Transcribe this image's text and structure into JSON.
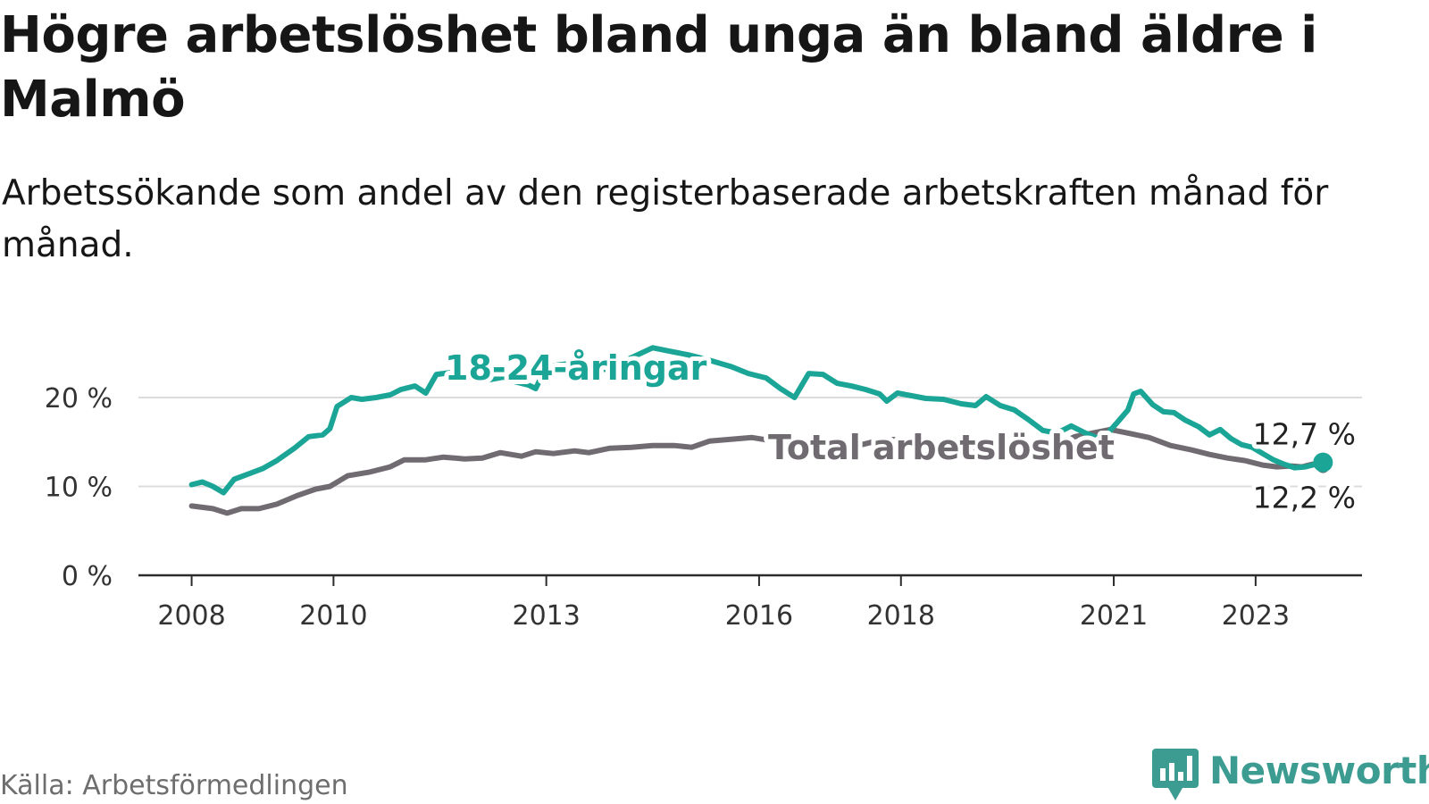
{
  "title": "Högre arbetslöshet bland unga än bland äldre i Malmö",
  "subtitle": "Arbetssökande som andel av den registerbaserade arbetskraften månad för månad.",
  "source": "Källa: Arbetsförmedlingen",
  "brand": {
    "name": "Newsworthy",
    "icon": "newsworthy-logo-icon",
    "color": "#3d9c92"
  },
  "chart_data": {
    "type": "line",
    "title": "Högre arbetslöshet bland unga än bland äldre i Malmö",
    "xlabel": "",
    "ylabel": "",
    "x_ticks": [
      2008,
      2010,
      2013,
      2016,
      2018,
      2021,
      2023
    ],
    "xlim": [
      2007.25,
      2024.5
    ],
    "y_ticks": [
      0,
      10,
      20
    ],
    "y_tick_labels": [
      "0 %",
      "10 %",
      "20 %"
    ],
    "ylim": [
      0,
      20
    ],
    "grid": true,
    "series": [
      {
        "name": "Total arbetslöshet",
        "label": "Total arbetslöshet",
        "color": "#6f6b70",
        "end_label": "12,2 %",
        "points": [
          [
            2008.0,
            7.8
          ],
          [
            2008.3,
            7.5
          ],
          [
            2008.5,
            7.0
          ],
          [
            2008.7,
            7.5
          ],
          [
            2008.95,
            7.5
          ],
          [
            2009.2,
            8.0
          ],
          [
            2009.5,
            9.0
          ],
          [
            2009.75,
            9.7
          ],
          [
            2009.95,
            10.0
          ],
          [
            2010.2,
            11.2
          ],
          [
            2010.5,
            11.6
          ],
          [
            2010.8,
            12.2
          ],
          [
            2011.0,
            13.0
          ],
          [
            2011.3,
            13.0
          ],
          [
            2011.55,
            13.3
          ],
          [
            2011.85,
            13.1
          ],
          [
            2012.1,
            13.2
          ],
          [
            2012.35,
            13.8
          ],
          [
            2012.65,
            13.4
          ],
          [
            2012.85,
            13.9
          ],
          [
            2013.1,
            13.7
          ],
          [
            2013.4,
            14.0
          ],
          [
            2013.6,
            13.8
          ],
          [
            2013.9,
            14.3
          ],
          [
            2014.2,
            14.4
          ],
          [
            2014.5,
            14.6
          ],
          [
            2014.8,
            14.6
          ],
          [
            2015.05,
            14.4
          ],
          [
            2015.3,
            15.1
          ],
          [
            2015.6,
            15.3
          ],
          [
            2015.9,
            15.5
          ],
          [
            2016.3,
            15.0
          ],
          [
            2016.5,
            15.2
          ],
          [
            2016.85,
            15.0
          ],
          [
            2017.15,
            15.1
          ],
          [
            2017.45,
            14.7
          ],
          [
            2017.7,
            15.2
          ],
          [
            2018.0,
            15.3
          ],
          [
            2018.6,
            14.5
          ],
          [
            2019.2,
            14.0
          ],
          [
            2019.7,
            14.0
          ],
          [
            2020.15,
            14.4
          ],
          [
            2020.45,
            15.6
          ],
          [
            2020.7,
            16.0
          ],
          [
            2020.95,
            16.4
          ],
          [
            2021.2,
            16.0
          ],
          [
            2021.5,
            15.5
          ],
          [
            2021.8,
            14.6
          ],
          [
            2022.1,
            14.1
          ],
          [
            2022.35,
            13.6
          ],
          [
            2022.6,
            13.2
          ],
          [
            2022.85,
            12.9
          ],
          [
            2023.1,
            12.4
          ],
          [
            2023.3,
            12.2
          ],
          [
            2023.5,
            12.3
          ],
          [
            2023.65,
            12.2
          ],
          [
            2023.8,
            12.5
          ],
          [
            2023.95,
            12.2
          ]
        ]
      },
      {
        "name": "18-24-åringar",
        "label": "18-24-åringar",
        "color": "#1aa596",
        "end_label": "12,7 %",
        "points": [
          [
            2008.0,
            10.2
          ],
          [
            2008.15,
            10.5
          ],
          [
            2008.3,
            10.0
          ],
          [
            2008.45,
            9.3
          ],
          [
            2008.6,
            10.8
          ],
          [
            2008.8,
            11.4
          ],
          [
            2009.0,
            12.0
          ],
          [
            2009.2,
            12.9
          ],
          [
            2009.45,
            14.3
          ],
          [
            2009.65,
            15.6
          ],
          [
            2009.85,
            15.8
          ],
          [
            2009.95,
            16.5
          ],
          [
            2010.05,
            19.0
          ],
          [
            2010.25,
            20.0
          ],
          [
            2010.4,
            19.8
          ],
          [
            2010.6,
            20.0
          ],
          [
            2010.8,
            20.3
          ],
          [
            2010.95,
            20.9
          ],
          [
            2011.15,
            21.3
          ],
          [
            2011.3,
            20.5
          ],
          [
            2011.45,
            22.6
          ],
          [
            2011.65,
            22.8
          ],
          [
            2011.85,
            22.2
          ],
          [
            2012.0,
            22.0
          ],
          [
            2012.2,
            22.0
          ],
          [
            2012.4,
            22.3
          ],
          [
            2012.55,
            21.8
          ],
          [
            2012.75,
            21.4
          ],
          [
            2012.85,
            21.0
          ],
          [
            2013.0,
            23.5
          ],
          [
            2013.3,
            23.8
          ],
          [
            2013.6,
            23.0
          ],
          [
            2013.85,
            23.2
          ],
          [
            2014.15,
            24.3
          ],
          [
            2014.5,
            25.6
          ],
          [
            2014.75,
            25.2
          ],
          [
            2015.0,
            24.8
          ],
          [
            2015.3,
            24.2
          ],
          [
            2015.6,
            23.5
          ],
          [
            2015.85,
            22.7
          ],
          [
            2016.1,
            22.2
          ],
          [
            2016.3,
            21.0
          ],
          [
            2016.5,
            20.0
          ],
          [
            2016.7,
            22.7
          ],
          [
            2016.9,
            22.6
          ],
          [
            2017.1,
            21.6
          ],
          [
            2017.3,
            21.3
          ],
          [
            2017.5,
            20.9
          ],
          [
            2017.7,
            20.4
          ],
          [
            2017.8,
            19.6
          ],
          [
            2017.95,
            20.5
          ],
          [
            2018.15,
            20.2
          ],
          [
            2018.35,
            19.9
          ],
          [
            2018.6,
            19.8
          ],
          [
            2018.85,
            19.3
          ],
          [
            2019.05,
            19.1
          ],
          [
            2019.2,
            20.1
          ],
          [
            2019.4,
            19.1
          ],
          [
            2019.6,
            18.6
          ],
          [
            2019.8,
            17.5
          ],
          [
            2020.0,
            16.3
          ],
          [
            2020.2,
            16.0
          ],
          [
            2020.4,
            16.8
          ],
          [
            2020.6,
            16.0
          ],
          [
            2020.85,
            15.2
          ],
          [
            2020.95,
            16.3
          ],
          [
            2021.05,
            17.2
          ],
          [
            2021.2,
            18.6
          ],
          [
            2021.28,
            20.4
          ],
          [
            2021.38,
            20.7
          ],
          [
            2021.55,
            19.2
          ],
          [
            2021.7,
            18.4
          ],
          [
            2021.85,
            18.3
          ],
          [
            2022.0,
            17.5
          ],
          [
            2022.2,
            16.7
          ],
          [
            2022.35,
            15.8
          ],
          [
            2022.5,
            16.4
          ],
          [
            2022.65,
            15.4
          ],
          [
            2022.8,
            14.7
          ],
          [
            2022.95,
            14.4
          ],
          [
            2023.1,
            13.7
          ],
          [
            2023.25,
            13.0
          ],
          [
            2023.4,
            12.5
          ],
          [
            2023.55,
            12.1
          ],
          [
            2023.7,
            12.2
          ],
          [
            2023.8,
            12.4
          ],
          [
            2023.95,
            12.7
          ]
        ]
      }
    ]
  }
}
